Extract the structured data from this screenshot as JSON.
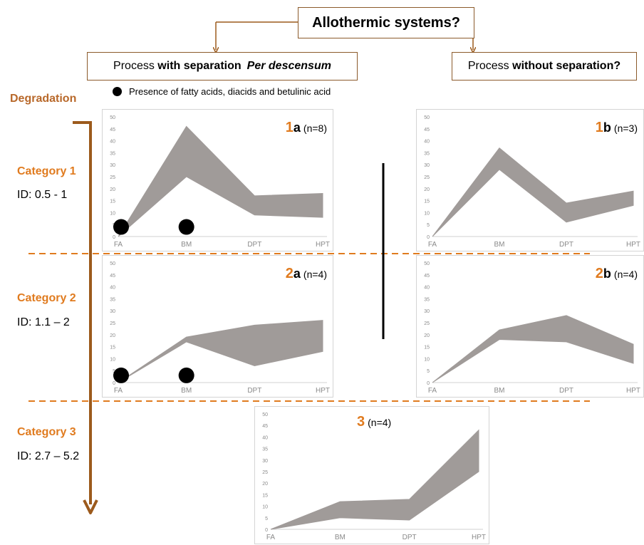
{
  "header": {
    "title": "Allothermic systems?",
    "left_prefix": "Process ",
    "left_bold": "with separation",
    "left_italic": "Per descensum",
    "right_prefix": "Process ",
    "right_bold": "without separation?"
  },
  "legend": {
    "label": "Presence of fatty acids, diacids and betulinic acid"
  },
  "degradation": {
    "label": "Degradation"
  },
  "categories": [
    {
      "title": "Category 1",
      "id": "ID: 0.5 - 1"
    },
    {
      "title": "Category 2",
      "id": "ID: 1.1 – 2"
    },
    {
      "title": "Category 3",
      "id": "ID: 2.7 – 5.2"
    }
  ],
  "colors": {
    "band": "#a09b99",
    "accent": "#e07b1f",
    "arrow": "#9c5a1c",
    "dash": "#e07b1f"
  },
  "chart_data": [
    {
      "type": "area",
      "label_num": "1",
      "label_letter": "a",
      "label_count": "(n=8)",
      "categories": [
        "FA",
        "BM",
        "DPT",
        "HPT"
      ],
      "yticks": [
        "0",
        "5",
        "10",
        "15",
        "20",
        "25",
        "30",
        "35",
        "40",
        "45",
        "50"
      ],
      "ylim": [
        0,
        50
      ],
      "lower": [
        0,
        25,
        9,
        8
      ],
      "upper": [
        0,
        46,
        17,
        18
      ],
      "dots": [
        0,
        1
      ],
      "dot_y": 4
    },
    {
      "type": "area",
      "label_num": "1",
      "label_letter": "b",
      "label_count": "(n=3)",
      "categories": [
        "FA",
        "BM",
        "DPT",
        "HPT"
      ],
      "yticks": [
        "0",
        "5",
        "10",
        "15",
        "20",
        "25",
        "30",
        "35",
        "40",
        "45",
        "50"
      ],
      "ylim": [
        0,
        50
      ],
      "lower": [
        0,
        28,
        6,
        13
      ],
      "upper": [
        0,
        37,
        14,
        19
      ],
      "dots": []
    },
    {
      "type": "area",
      "label_num": "2",
      "label_letter": "a",
      "label_count": "(n=4)",
      "categories": [
        "FA",
        "BM",
        "DPT",
        "HPT"
      ],
      "yticks": [
        "0",
        "5",
        "10",
        "15",
        "20",
        "25",
        "30",
        "35",
        "40",
        "45",
        "50"
      ],
      "ylim": [
        0,
        50
      ],
      "lower": [
        0,
        17,
        7,
        13
      ],
      "upper": [
        0,
        19,
        24,
        26
      ],
      "dots": [
        0,
        1
      ],
      "dot_y": 3
    },
    {
      "type": "area",
      "label_num": "2",
      "label_letter": "b",
      "label_count": "(n=4)",
      "categories": [
        "FA",
        "BM",
        "DPT",
        "HPT"
      ],
      "yticks": [
        "0",
        "5",
        "10",
        "15",
        "20",
        "25",
        "30",
        "35",
        "40",
        "45",
        "50"
      ],
      "ylim": [
        0,
        50
      ],
      "lower": [
        0,
        18,
        17,
        8
      ],
      "upper": [
        0,
        22,
        28,
        16
      ],
      "dots": []
    },
    {
      "type": "area",
      "label_num": "3",
      "label_letter": "",
      "label_count": "(n=4)",
      "categories": [
        "FA",
        "BM",
        "DPT",
        "HPT"
      ],
      "yticks": [
        "0",
        "5",
        "10",
        "15",
        "20",
        "25",
        "30",
        "35",
        "40",
        "45",
        "50"
      ],
      "ylim": [
        0,
        50
      ],
      "lower": [
        0,
        5,
        4,
        25
      ],
      "upper": [
        0,
        12,
        13,
        43
      ],
      "dots": []
    }
  ]
}
